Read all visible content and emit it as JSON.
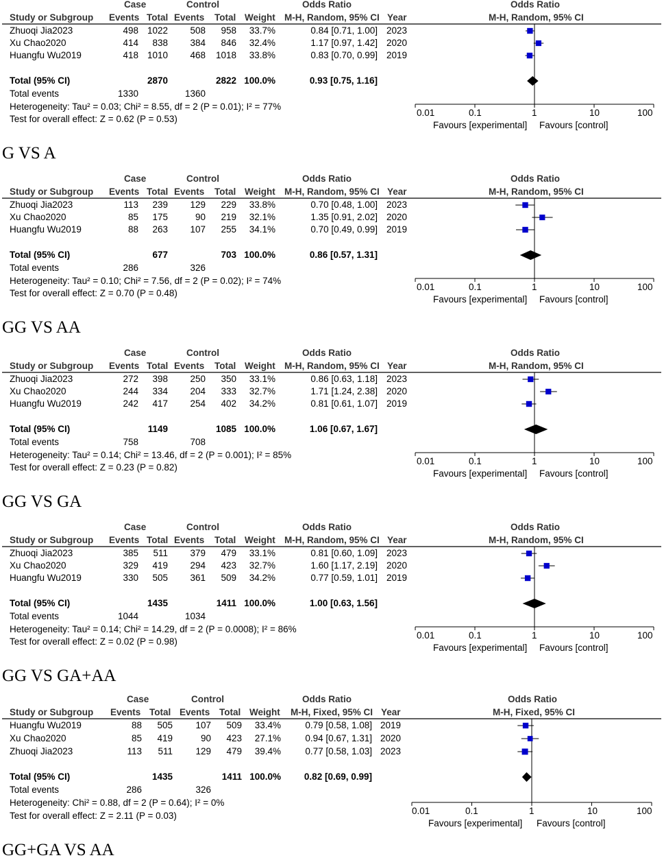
{
  "chart_data": [
    {
      "type": "forest",
      "caption": "G VS A",
      "header": {
        "case": "Case",
        "control": "Control",
        "or_group": "Odds Ratio",
        "or_plot": "Odds Ratio",
        "study": "Study or Subgroup",
        "events": "Events",
        "total": "Total",
        "weight": "Weight",
        "method": "M-H, Random, 95% CI",
        "year": "Year",
        "plot_method": "M-H, Random, 95% CI"
      },
      "studies": [
        {
          "name": "Zhuoqi Jia2023",
          "case_events": "498",
          "case_total": "1022",
          "ctrl_events": "508",
          "ctrl_total": "958",
          "weight": "33.7%",
          "ci_text": "0.84 [0.71, 1.00]",
          "year": "2023",
          "or": 0.84,
          "lo": 0.71,
          "hi": 1.0
        },
        {
          "name": "Xu Chao2020",
          "case_events": "414",
          "case_total": "838",
          "ctrl_events": "384",
          "ctrl_total": "846",
          "weight": "32.4%",
          "ci_text": "1.17 [0.97, 1.42]",
          "year": "2020",
          "or": 1.17,
          "lo": 0.97,
          "hi": 1.42
        },
        {
          "name": "Huangfu Wu2019",
          "case_events": "418",
          "case_total": "1010",
          "ctrl_events": "468",
          "ctrl_total": "1018",
          "weight": "33.8%",
          "ci_text": "0.83 [0.70, 0.99]",
          "year": "2019",
          "or": 0.83,
          "lo": 0.7,
          "hi": 0.99
        }
      ],
      "total": {
        "label": "Total (95% CI)",
        "case_total": "2870",
        "ctrl_total": "2822",
        "weight": "100.0%",
        "ci_text": "0.93 [0.75, 1.16]",
        "or": 0.93,
        "lo": 0.75,
        "hi": 1.16
      },
      "events_row": {
        "label": "Total events",
        "case": "1330",
        "ctrl": "1360"
      },
      "heterogeneity": "Heterogeneity: Tau² = 0.03; Chi² = 8.55, df = 2 (P = 0.01); I² = 77%",
      "overall": "Test for overall effect: Z = 0.62 (P = 0.53)",
      "axis": {
        "ticks": [
          "0.01",
          "0.1",
          "1",
          "10",
          "100"
        ],
        "tick_values": [
          0.01,
          0.1,
          1,
          10,
          100
        ],
        "scale": "log",
        "left_label": "Favours [experimental]",
        "right_label": "Favours [control]"
      }
    },
    {
      "type": "forest",
      "caption": "GG VS AA",
      "header": {
        "case": "Case",
        "control": "Control",
        "or_group": "Odds Ratio",
        "or_plot": "Odds Ratio",
        "study": "Study or Subgroup",
        "events": "Events",
        "total": "Total",
        "weight": "Weight",
        "method": "M-H, Random, 95% CI",
        "year": "Year",
        "plot_method": "M-H, Random, 95% CI"
      },
      "studies": [
        {
          "name": "Zhuoqi Jia2023",
          "case_events": "113",
          "case_total": "239",
          "ctrl_events": "129",
          "ctrl_total": "229",
          "weight": "33.8%",
          "ci_text": "0.70 [0.48, 1.00]",
          "year": "2023",
          "or": 0.7,
          "lo": 0.48,
          "hi": 1.0
        },
        {
          "name": "Xu Chao2020",
          "case_events": "85",
          "case_total": "175",
          "ctrl_events": "90",
          "ctrl_total": "219",
          "weight": "32.1%",
          "ci_text": "1.35 [0.91, 2.02]",
          "year": "2020",
          "or": 1.35,
          "lo": 0.91,
          "hi": 2.02
        },
        {
          "name": "Huangfu Wu2019",
          "case_events": "88",
          "case_total": "263",
          "ctrl_events": "107",
          "ctrl_total": "255",
          "weight": "34.1%",
          "ci_text": "0.70 [0.49, 0.99]",
          "year": "2019",
          "or": 0.7,
          "lo": 0.49,
          "hi": 0.99
        }
      ],
      "total": {
        "label": "Total (95% CI)",
        "case_total": "677",
        "ctrl_total": "703",
        "weight": "100.0%",
        "ci_text": "0.86 [0.57, 1.31]",
        "or": 0.86,
        "lo": 0.57,
        "hi": 1.31
      },
      "events_row": {
        "label": "Total events",
        "case": "286",
        "ctrl": "326"
      },
      "heterogeneity": "Heterogeneity: Tau² = 0.10; Chi² = 7.56, df = 2 (P = 0.02); I² = 74%",
      "overall": "Test for overall effect: Z = 0.70 (P = 0.48)",
      "axis": {
        "ticks": [
          "0.01",
          "0.1",
          "1",
          "10",
          "100"
        ],
        "tick_values": [
          0.01,
          0.1,
          1,
          10,
          100
        ],
        "scale": "log",
        "left_label": "Favours [experimental]",
        "right_label": "Favours [control]"
      }
    },
    {
      "type": "forest",
      "caption": "GG VS GA",
      "header": {
        "case": "Case",
        "control": "Control",
        "or_group": "Odds Ratio",
        "or_plot": "Odds Ratio",
        "study": "Study or Subgroup",
        "events": "Events",
        "total": "Total",
        "weight": "Weight",
        "method": "M-H, Random, 95% CI",
        "year": "Year",
        "plot_method": "M-H, Random, 95% CI"
      },
      "studies": [
        {
          "name": "Zhuoqi Jia2023",
          "case_events": "272",
          "case_total": "398",
          "ctrl_events": "250",
          "ctrl_total": "350",
          "weight": "33.1%",
          "ci_text": "0.86 [0.63, 1.18]",
          "year": "2023",
          "or": 0.86,
          "lo": 0.63,
          "hi": 1.18
        },
        {
          "name": "Xu Chao2020",
          "case_events": "244",
          "case_total": "334",
          "ctrl_events": "204",
          "ctrl_total": "333",
          "weight": "32.7%",
          "ci_text": "1.71 [1.24, 2.38]",
          "year": "2020",
          "or": 1.71,
          "lo": 1.24,
          "hi": 2.38
        },
        {
          "name": "Huangfu Wu2019",
          "case_events": "242",
          "case_total": "417",
          "ctrl_events": "254",
          "ctrl_total": "402",
          "weight": "34.2%",
          "ci_text": "0.81 [0.61, 1.07]",
          "year": "2019",
          "or": 0.81,
          "lo": 0.61,
          "hi": 1.07
        }
      ],
      "total": {
        "label": "Total (95% CI)",
        "case_total": "1149",
        "ctrl_total": "1085",
        "weight": "100.0%",
        "ci_text": "1.06 [0.67, 1.67]",
        "or": 1.06,
        "lo": 0.67,
        "hi": 1.67
      },
      "events_row": {
        "label": "Total events",
        "case": "758",
        "ctrl": "708"
      },
      "heterogeneity": "Heterogeneity: Tau² = 0.14; Chi² = 13.46, df = 2 (P = 0.001); I² = 85%",
      "overall": "Test for overall effect: Z = 0.23 (P = 0.82)",
      "axis": {
        "ticks": [
          "0.01",
          "0.1",
          "1",
          "10",
          "100"
        ],
        "tick_values": [
          0.01,
          0.1,
          1,
          10,
          100
        ],
        "scale": "log",
        "left_label": "Favours [experimental]",
        "right_label": "Favours [control]"
      }
    },
    {
      "type": "forest",
      "caption": "GG VS GA+AA",
      "header": {
        "case": "Case",
        "control": "Control",
        "or_group": "Odds Ratio",
        "or_plot": "Odds Ratio",
        "study": "Study or Subgroup",
        "events": "Events",
        "total": "Total",
        "weight": "Weight",
        "method": "M-H, Random, 95% CI",
        "year": "Year",
        "plot_method": "M-H, Random, 95% CI"
      },
      "studies": [
        {
          "name": "Zhuoqi Jia2023",
          "case_events": "385",
          "case_total": "511",
          "ctrl_events": "379",
          "ctrl_total": "479",
          "weight": "33.1%",
          "ci_text": "0.81 [0.60, 1.09]",
          "year": "2023",
          "or": 0.81,
          "lo": 0.6,
          "hi": 1.09
        },
        {
          "name": "Xu Chao2020",
          "case_events": "329",
          "case_total": "419",
          "ctrl_events": "294",
          "ctrl_total": "423",
          "weight": "32.7%",
          "ci_text": "1.60 [1.17, 2.19]",
          "year": "2020",
          "or": 1.6,
          "lo": 1.17,
          "hi": 2.19
        },
        {
          "name": "Huangfu Wu2019",
          "case_events": "330",
          "case_total": "505",
          "ctrl_events": "361",
          "ctrl_total": "509",
          "weight": "34.2%",
          "ci_text": "0.77 [0.59, 1.01]",
          "year": "2019",
          "or": 0.77,
          "lo": 0.59,
          "hi": 1.01
        }
      ],
      "total": {
        "label": "Total (95% CI)",
        "case_total": "1435",
        "ctrl_total": "1411",
        "weight": "100.0%",
        "ci_text": "1.00 [0.63, 1.56]",
        "or": 1.0,
        "lo": 0.63,
        "hi": 1.56
      },
      "events_row": {
        "label": "Total events",
        "case": "1044",
        "ctrl": "1034"
      },
      "heterogeneity": "Heterogeneity: Tau² = 0.14; Chi² = 14.29, df = 2 (P = 0.0008); I² = 86%",
      "overall": "Test for overall effect: Z = 0.02 (P = 0.98)",
      "axis": {
        "ticks": [
          "0.01",
          "0.1",
          "1",
          "10",
          "100"
        ],
        "tick_values": [
          0.01,
          0.1,
          1,
          10,
          100
        ],
        "scale": "log",
        "left_label": "Favours [experimental]",
        "right_label": "Favours [control]"
      }
    },
    {
      "type": "forest",
      "caption": "GG+GA VS AA",
      "header": {
        "case": "Case",
        "control": "Control",
        "or_group": "Odds Ratio",
        "or_plot": "Odds Ratio",
        "study": "Study or Subgroup",
        "events": "Events",
        "total": "Total",
        "weight": "Weight",
        "method": "M-H, Fixed, 95% CI",
        "year": "Year",
        "plot_method": "M-H, Fixed, 95% CI"
      },
      "studies": [
        {
          "name": "Huangfu Wu2019",
          "case_events": "88",
          "case_total": "505",
          "ctrl_events": "107",
          "ctrl_total": "509",
          "weight": "33.4%",
          "ci_text": "0.79 [0.58, 1.08]",
          "year": "2019",
          "or": 0.79,
          "lo": 0.58,
          "hi": 1.08
        },
        {
          "name": "Xu Chao2020",
          "case_events": "85",
          "case_total": "419",
          "ctrl_events": "90",
          "ctrl_total": "423",
          "weight": "27.1%",
          "ci_text": "0.94 [0.67, 1.31]",
          "year": "2020",
          "or": 0.94,
          "lo": 0.67,
          "hi": 1.31
        },
        {
          "name": "Zhuoqi Jia2023",
          "case_events": "113",
          "case_total": "511",
          "ctrl_events": "129",
          "ctrl_total": "479",
          "weight": "39.4%",
          "ci_text": "0.77 [0.58, 1.03]",
          "year": "2023",
          "or": 0.77,
          "lo": 0.58,
          "hi": 1.03
        }
      ],
      "total": {
        "label": "Total (95% CI)",
        "case_total": "1435",
        "ctrl_total": "1411",
        "weight": "100.0%",
        "ci_text": "0.82 [0.69, 0.99]",
        "or": 0.82,
        "lo": 0.69,
        "hi": 0.99
      },
      "events_row": {
        "label": "Total events",
        "case": "286",
        "ctrl": "326"
      },
      "heterogeneity": "Heterogeneity: Chi² = 0.88, df = 2 (P = 0.64); I² = 0%",
      "overall": "Test for overall effect: Z = 2.11 (P = 0.03)",
      "axis": {
        "ticks": [
          "0.01",
          "0.1",
          "1",
          "10",
          "100"
        ],
        "tick_values": [
          0.01,
          0.1,
          1,
          10,
          100
        ],
        "scale": "log",
        "left_label": "Favours [experimental]",
        "right_label": "Favours [control]"
      }
    }
  ]
}
